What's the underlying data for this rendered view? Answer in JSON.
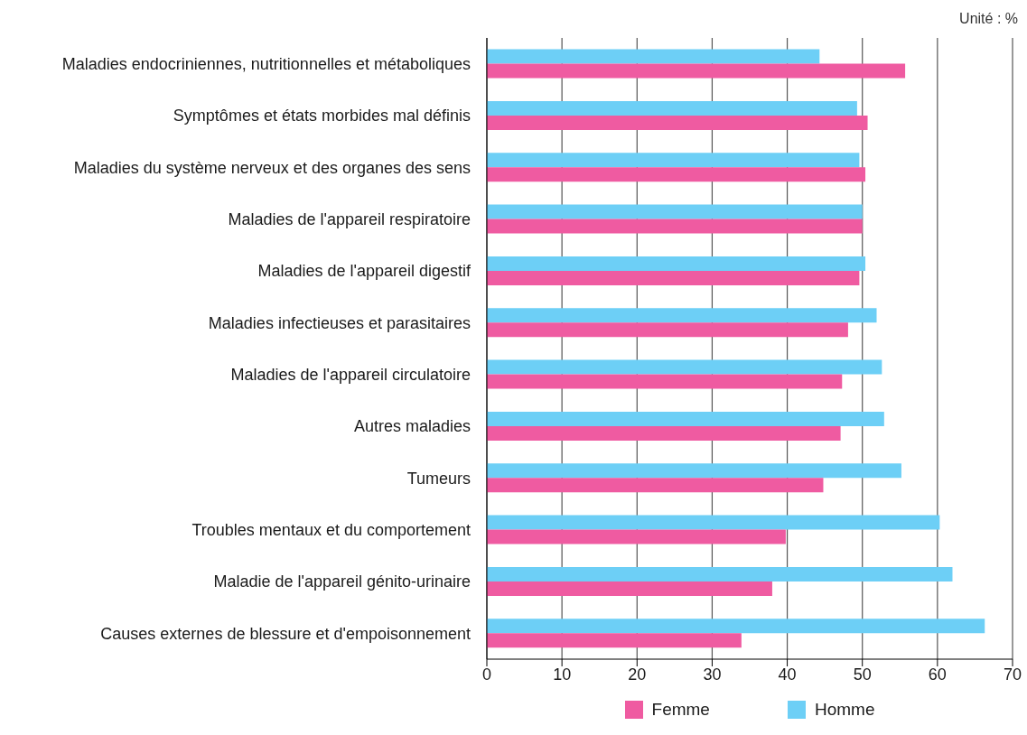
{
  "chart_data": {
    "type": "bar",
    "orientation": "horizontal",
    "categories": [
      "Maladies endocriniennes, nutritionnelles et métaboliques",
      "Symptômes et états morbides mal définis",
      "Maladies du système nerveux et des organes des sens",
      "Maladies de l'appareil respiratoire",
      "Maladies de l'appareil digestif",
      "Maladies infectieuses et parasitaires",
      "Maladies de l'appareil circulatoire",
      "Autres maladies",
      "Tumeurs",
      "Troubles mentaux et du comportement",
      "Maladie de l'appareil génito-urinaire",
      "Causes externes de blessure et d'empoisonnement"
    ],
    "series": [
      {
        "name": "Femme",
        "color": "#ef5ba1",
        "values": [
          55.7,
          50.7,
          50.4,
          50.0,
          49.6,
          48.1,
          47.3,
          47.1,
          44.8,
          39.8,
          38.0,
          33.9
        ]
      },
      {
        "name": "Homme",
        "color": "#6dcff6",
        "values": [
          44.3,
          49.3,
          49.6,
          50.0,
          50.4,
          51.9,
          52.6,
          52.9,
          55.2,
          60.3,
          62.0,
          66.3
        ]
      }
    ],
    "xlim": [
      0,
      70
    ],
    "xticks": [
      0,
      10,
      20,
      30,
      40,
      50,
      60,
      70
    ],
    "grid": "x",
    "legend": "bottom",
    "annotations": [
      "Unité : %"
    ]
  }
}
